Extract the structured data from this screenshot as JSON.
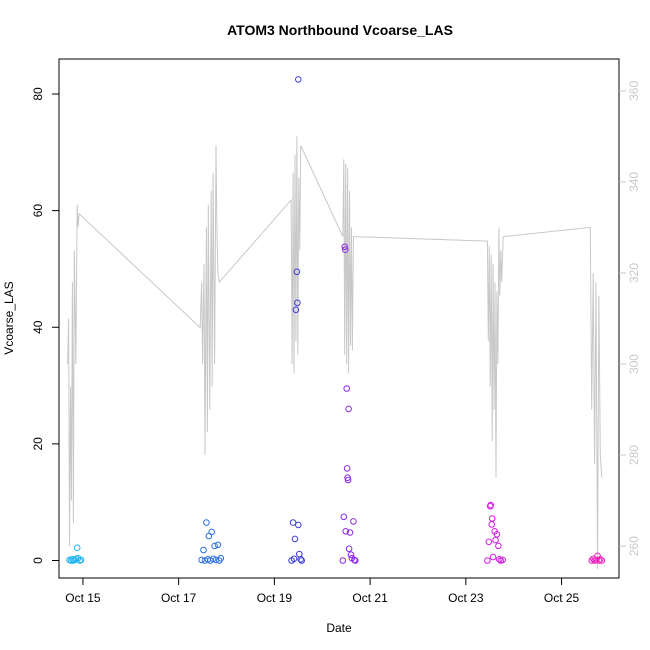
{
  "chart_data": {
    "type": "scatter",
    "title": "ATOM3 Northbound Vcoarse_LAS",
    "xlabel": "Date",
    "ylabel": "Vcoarse_LAS",
    "x_ticks": [
      {
        "label": "Oct 15",
        "day": 15
      },
      {
        "label": "Oct 17",
        "day": 17
      },
      {
        "label": "Oct 19",
        "day": 19
      },
      {
        "label": "Oct 21",
        "day": 21
      },
      {
        "label": "Oct 23",
        "day": 23
      },
      {
        "label": "Oct 25",
        "day": 25
      }
    ],
    "xlim": [
      14.5,
      26.2
    ],
    "y_left": {
      "ticks": [
        "0",
        "20",
        "40",
        "60",
        "80"
      ],
      "lim": [
        -3,
        86
      ]
    },
    "y_right": {
      "ticks": [
        "260",
        "280",
        "300",
        "320",
        "340",
        "360"
      ],
      "lim": [
        253,
        367
      ],
      "color": "#c8c8c8"
    },
    "grid": false,
    "legend": "none",
    "points": [
      {
        "x": 14.72,
        "y": 0.1,
        "color": "#1eb4f0"
      },
      {
        "x": 14.75,
        "y": 0.0,
        "color": "#1eb4f0"
      },
      {
        "x": 14.78,
        "y": 0.2,
        "color": "#1eb4f0"
      },
      {
        "x": 14.8,
        "y": 0.0,
        "color": "#1eb4f0"
      },
      {
        "x": 14.83,
        "y": 0.1,
        "color": "#1eb4f0"
      },
      {
        "x": 14.86,
        "y": 0.3,
        "color": "#1eb4f0"
      },
      {
        "x": 14.88,
        "y": 2.2,
        "color": "#1eb4f0"
      },
      {
        "x": 14.9,
        "y": 0.4,
        "color": "#1eb4f0"
      },
      {
        "x": 14.93,
        "y": 0.0,
        "color": "#1eb4f0"
      },
      {
        "x": 14.96,
        "y": 0.1,
        "color": "#1eb4f0"
      },
      {
        "x": 17.48,
        "y": 0.1,
        "color": "#2a6ee6"
      },
      {
        "x": 17.52,
        "y": 1.8,
        "color": "#2a6ee6"
      },
      {
        "x": 17.55,
        "y": 0.0,
        "color": "#2a6ee6"
      },
      {
        "x": 17.58,
        "y": 6.5,
        "color": "#2a6ee6"
      },
      {
        "x": 17.61,
        "y": 0.2,
        "color": "#2a6ee6"
      },
      {
        "x": 17.63,
        "y": 4.2,
        "color": "#2a6ee6"
      },
      {
        "x": 17.66,
        "y": 0.0,
        "color": "#2a6ee6"
      },
      {
        "x": 17.69,
        "y": 4.9,
        "color": "#2a6ee6"
      },
      {
        "x": 17.72,
        "y": 0.3,
        "color": "#2a6ee6"
      },
      {
        "x": 17.75,
        "y": 2.5,
        "color": "#2a6ee6"
      },
      {
        "x": 17.78,
        "y": 0.1,
        "color": "#2a6ee6"
      },
      {
        "x": 17.82,
        "y": 2.7,
        "color": "#2a6ee6"
      },
      {
        "x": 17.85,
        "y": 0.0,
        "color": "#2a6ee6"
      },
      {
        "x": 17.88,
        "y": 0.4,
        "color": "#2a6ee6"
      },
      {
        "x": 19.36,
        "y": 0.0,
        "color": "#3c3cdc"
      },
      {
        "x": 19.39,
        "y": 6.5,
        "color": "#3c3cdc"
      },
      {
        "x": 19.41,
        "y": 0.3,
        "color": "#3c3cdc"
      },
      {
        "x": 19.43,
        "y": 3.7,
        "color": "#3c3cdc"
      },
      {
        "x": 19.45,
        "y": 43.0,
        "color": "#3c3cdc"
      },
      {
        "x": 19.47,
        "y": 49.5,
        "color": "#3c3cdc"
      },
      {
        "x": 19.48,
        "y": 44.2,
        "color": "#3c3cdc"
      },
      {
        "x": 19.5,
        "y": 82.5,
        "color": "#3c3cdc"
      },
      {
        "x": 19.5,
        "y": 6.1,
        "color": "#3c3cdc"
      },
      {
        "x": 19.52,
        "y": 1.1,
        "color": "#3c3cdc"
      },
      {
        "x": 19.55,
        "y": 0.2,
        "color": "#3c3cdc"
      },
      {
        "x": 19.57,
        "y": 0.0,
        "color": "#3c3cdc"
      },
      {
        "x": 20.43,
        "y": 0.0,
        "color": "#8c28e6"
      },
      {
        "x": 20.45,
        "y": 7.5,
        "color": "#8c28e6"
      },
      {
        "x": 20.47,
        "y": 53.8,
        "color": "#8c28e6"
      },
      {
        "x": 20.48,
        "y": 53.3,
        "color": "#8c28e6"
      },
      {
        "x": 20.49,
        "y": 5.0,
        "color": "#8c28e6"
      },
      {
        "x": 20.51,
        "y": 29.5,
        "color": "#8c28e6"
      },
      {
        "x": 20.52,
        "y": 15.8,
        "color": "#8c28e6"
      },
      {
        "x": 20.53,
        "y": 14.2,
        "color": "#8c28e6"
      },
      {
        "x": 20.54,
        "y": 13.8,
        "color": "#8c28e6"
      },
      {
        "x": 20.55,
        "y": 26.0,
        "color": "#8c28e6"
      },
      {
        "x": 20.56,
        "y": 2.0,
        "color": "#8c28e6"
      },
      {
        "x": 20.58,
        "y": 4.8,
        "color": "#8c28e6"
      },
      {
        "x": 20.6,
        "y": 1.0,
        "color": "#8c28e6"
      },
      {
        "x": 20.62,
        "y": 0.4,
        "color": "#8c28e6"
      },
      {
        "x": 20.65,
        "y": 6.7,
        "color": "#8c28e6"
      },
      {
        "x": 20.67,
        "y": 0.1,
        "color": "#8c28e6"
      },
      {
        "x": 20.69,
        "y": 0.0,
        "color": "#8c28e6"
      },
      {
        "x": 23.45,
        "y": 0.0,
        "color": "#d41ae6"
      },
      {
        "x": 23.48,
        "y": 3.2,
        "color": "#d41ae6"
      },
      {
        "x": 23.51,
        "y": 9.3,
        "color": "#d41ae6"
      },
      {
        "x": 23.52,
        "y": 9.5,
        "color": "#d41ae6"
      },
      {
        "x": 23.54,
        "y": 6.2,
        "color": "#d41ae6"
      },
      {
        "x": 23.55,
        "y": 7.2,
        "color": "#d41ae6"
      },
      {
        "x": 23.57,
        "y": 0.6,
        "color": "#d41ae6"
      },
      {
        "x": 23.6,
        "y": 5.0,
        "color": "#d41ae6"
      },
      {
        "x": 23.62,
        "y": 3.5,
        "color": "#d41ae6"
      },
      {
        "x": 23.65,
        "y": 4.5,
        "color": "#d41ae6"
      },
      {
        "x": 23.68,
        "y": 2.5,
        "color": "#d41ae6"
      },
      {
        "x": 23.7,
        "y": 0.2,
        "color": "#d41ae6"
      },
      {
        "x": 23.73,
        "y": 0.0,
        "color": "#d41ae6"
      },
      {
        "x": 23.77,
        "y": 0.1,
        "color": "#d41ae6"
      },
      {
        "x": 25.63,
        "y": 0.0,
        "color": "#f01ebe"
      },
      {
        "x": 25.66,
        "y": 0.3,
        "color": "#f01ebe"
      },
      {
        "x": 25.69,
        "y": 0.0,
        "color": "#f01ebe"
      },
      {
        "x": 25.72,
        "y": 0.1,
        "color": "#f01ebe"
      },
      {
        "x": 25.75,
        "y": 0.8,
        "color": "#f01ebe"
      },
      {
        "x": 25.78,
        "y": 0.0,
        "color": "#f01ebe"
      },
      {
        "x": 25.81,
        "y": 0.2,
        "color": "#f01ebe"
      },
      {
        "x": 25.84,
        "y": 0.0,
        "color": "#f01ebe"
      }
    ],
    "line_series": {
      "axis": "right",
      "color": "#c8c8c8",
      "x": [
        14.68,
        14.7,
        14.72,
        14.74,
        14.76,
        14.78,
        14.8,
        14.82,
        14.85,
        14.88,
        14.9,
        14.92,
        17.45,
        17.48,
        17.5,
        17.53,
        17.55,
        17.58,
        17.6,
        17.62,
        17.65,
        17.68,
        17.7,
        17.72,
        17.75,
        17.78,
        17.8,
        17.82,
        17.85,
        19.35,
        19.37,
        19.39,
        19.41,
        19.43,
        19.45,
        19.47,
        19.49,
        19.51,
        19.53,
        19.55,
        20.43,
        20.45,
        20.47,
        20.49,
        20.51,
        20.53,
        20.55,
        20.57,
        20.59,
        20.61,
        20.63,
        20.65,
        23.45,
        23.47,
        23.49,
        23.51,
        23.53,
        23.55,
        23.57,
        23.59,
        23.61,
        23.63,
        23.65,
        23.67,
        23.69,
        23.71,
        23.73,
        23.75,
        23.78,
        25.6,
        25.63,
        25.66,
        25.69,
        25.72,
        25.75,
        25.78,
        25.81,
        25.84
      ],
      "y": [
        300,
        310,
        260,
        295,
        270,
        318,
        265,
        325,
        300,
        335,
        330,
        333,
        308,
        318,
        300,
        322,
        280,
        330,
        285,
        335,
        290,
        338,
        295,
        342,
        300,
        348,
        330,
        320,
        318,
        336,
        300,
        342,
        298,
        346,
        305,
        350,
        302,
        341,
        325,
        348,
        328,
        345,
        302,
        344,
        300,
        343,
        298,
        338,
        304,
        330,
        303,
        328,
        327,
        305,
        326,
        295,
        324,
        283,
        322,
        290,
        318,
        275,
        316,
        300,
        330,
        315,
        325,
        318,
        328,
        330,
        290,
        320,
        278,
        318,
        255,
        315,
        280,
        275
      ]
    }
  }
}
